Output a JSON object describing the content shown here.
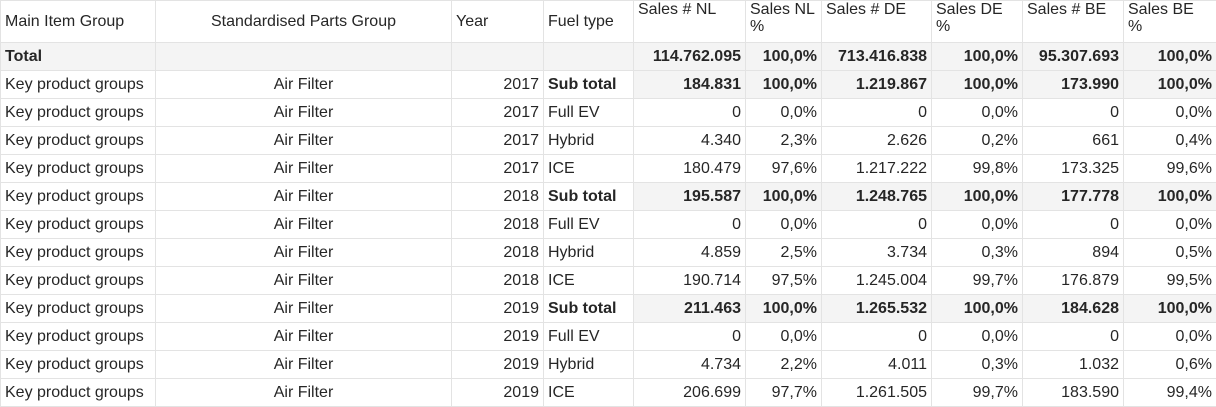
{
  "headers": [
    "Main Item Group",
    "Standardised Parts Group",
    "Year",
    "Fuel type",
    "Sales #  NL",
    "Sales NL %",
    "Sales # DE",
    "Sales DE %",
    "Sales # BE",
    "Sales BE %"
  ],
  "total": {
    "label": "Total",
    "values": [
      "114.762.095",
      "100,0%",
      "713.416.838",
      "100,0%",
      "95.307.693",
      "100,0%"
    ]
  },
  "rows": [
    {
      "group": "Key product groups",
      "part": "Air Filter",
      "year": "2017",
      "fuel": "Sub total",
      "subtotal": true,
      "values": [
        "184.831",
        "100,0%",
        "1.219.867",
        "100,0%",
        "173.990",
        "100,0%"
      ]
    },
    {
      "group": "Key product groups",
      "part": "Air Filter",
      "year": "2017",
      "fuel": "Full EV",
      "subtotal": false,
      "values": [
        "0",
        "0,0%",
        "0",
        "0,0%",
        "0",
        "0,0%"
      ]
    },
    {
      "group": "Key product groups",
      "part": "Air Filter",
      "year": "2017",
      "fuel": "Hybrid",
      "subtotal": false,
      "values": [
        "4.340",
        "2,3%",
        "2.626",
        "0,2%",
        "661",
        "0,4%"
      ]
    },
    {
      "group": "Key product groups",
      "part": "Air Filter",
      "year": "2017",
      "fuel": "ICE",
      "subtotal": false,
      "values": [
        "180.479",
        "97,6%",
        "1.217.222",
        "99,8%",
        "173.325",
        "99,6%"
      ]
    },
    {
      "group": "Key product groups",
      "part": "Air Filter",
      "year": "2018",
      "fuel": "Sub total",
      "subtotal": true,
      "values": [
        "195.587",
        "100,0%",
        "1.248.765",
        "100,0%",
        "177.778",
        "100,0%"
      ]
    },
    {
      "group": "Key product groups",
      "part": "Air Filter",
      "year": "2018",
      "fuel": "Full EV",
      "subtotal": false,
      "values": [
        "0",
        "0,0%",
        "0",
        "0,0%",
        "0",
        "0,0%"
      ]
    },
    {
      "group": "Key product groups",
      "part": "Air Filter",
      "year": "2018",
      "fuel": "Hybrid",
      "subtotal": false,
      "values": [
        "4.859",
        "2,5%",
        "3.734",
        "0,3%",
        "894",
        "0,5%"
      ]
    },
    {
      "group": "Key product groups",
      "part": "Air Filter",
      "year": "2018",
      "fuel": "ICE",
      "subtotal": false,
      "values": [
        "190.714",
        "97,5%",
        "1.245.004",
        "99,7%",
        "176.879",
        "99,5%"
      ]
    },
    {
      "group": "Key product groups",
      "part": "Air Filter",
      "year": "2019",
      "fuel": "Sub total",
      "subtotal": true,
      "values": [
        "211.463",
        "100,0%",
        "1.265.532",
        "100,0%",
        "184.628",
        "100,0%"
      ]
    },
    {
      "group": "Key product groups",
      "part": "Air Filter",
      "year": "2019",
      "fuel": "Full EV",
      "subtotal": false,
      "values": [
        "0",
        "0,0%",
        "0",
        "0,0%",
        "0",
        "0,0%"
      ]
    },
    {
      "group": "Key product groups",
      "part": "Air Filter",
      "year": "2019",
      "fuel": "Hybrid",
      "subtotal": false,
      "values": [
        "4.734",
        "2,2%",
        "4.011",
        "0,3%",
        "1.032",
        "0,6%"
      ]
    },
    {
      "group": "Key product groups",
      "part": "Air Filter",
      "year": "2019",
      "fuel": "ICE",
      "subtotal": false,
      "values": [
        "206.699",
        "97,7%",
        "1.261.505",
        "99,7%",
        "183.590",
        "99,4%"
      ]
    }
  ],
  "colors": {
    "subtotal_bg": "#f4f4f4",
    "grid": "#e3e3e3",
    "text": "#262626"
  }
}
